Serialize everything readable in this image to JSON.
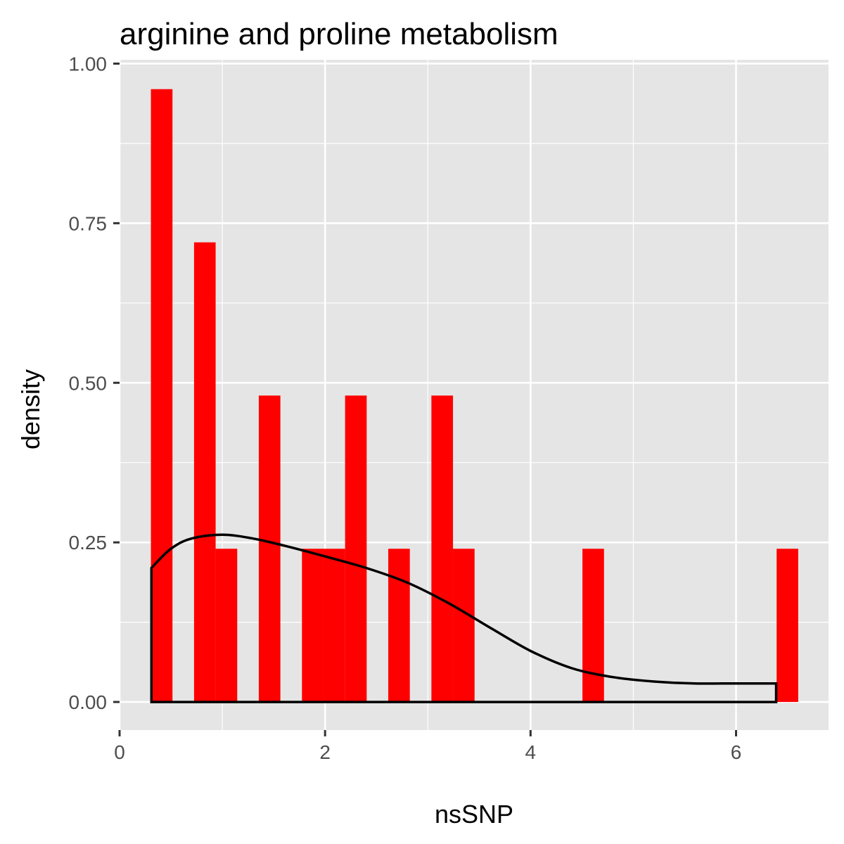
{
  "chart_data": {
    "type": "bar",
    "title": "arginine and proline metabolism",
    "xlabel": "nsSNP",
    "ylabel": "density",
    "xlim": [
      0,
      6.9
    ],
    "ylim": [
      -0.044,
      1.006
    ],
    "x_ticks": [
      0,
      2,
      4,
      6
    ],
    "x_tick_labels": [
      "0",
      "2",
      "4",
      "6"
    ],
    "y_ticks": [
      0,
      0.25,
      0.5,
      0.75,
      1.0
    ],
    "y_tick_labels": [
      "0.00",
      "0.25",
      "0.50",
      "0.75",
      "1.00"
    ],
    "grid": true,
    "bar_color": "#ff0000",
    "panel_color": "#e5e5e5",
    "density_color": "#000000",
    "bins": {
      "width": 0.21,
      "x": [
        0.41,
        0.83,
        1.04,
        1.46,
        1.88,
        2.09,
        2.3,
        2.72,
        3.14,
        3.35,
        4.61,
        6.5
      ],
      "density": [
        0.96,
        0.72,
        0.24,
        0.48,
        0.24,
        0.24,
        0.48,
        0.24,
        0.48,
        0.24,
        0.24,
        0.24
      ]
    },
    "density_curve": {
      "x": [
        0.31,
        0.5,
        0.7,
        1.0,
        1.3,
        1.6,
        2.0,
        2.4,
        2.8,
        3.2,
        3.6,
        4.0,
        4.4,
        4.8,
        5.2,
        5.6,
        6.0,
        6.39
      ],
      "y": [
        0.21,
        0.24,
        0.256,
        0.262,
        0.256,
        0.245,
        0.228,
        0.21,
        0.187,
        0.155,
        0.117,
        0.08,
        0.053,
        0.039,
        0.032,
        0.029,
        0.029,
        0.029
      ]
    }
  }
}
